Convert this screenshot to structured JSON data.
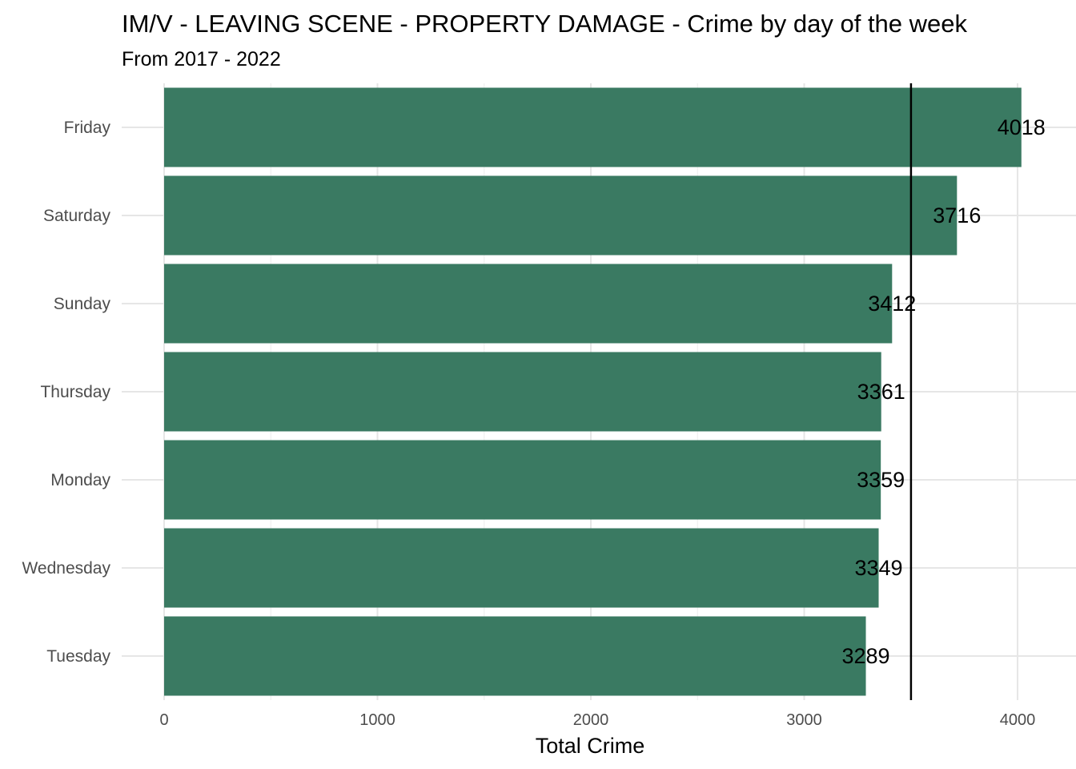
{
  "chart_data": {
    "type": "bar",
    "orientation": "horizontal",
    "title": "IM/V - LEAVING SCENE - PROPERTY DAMAGE - Crime by day of the week",
    "subtitle": "From 2017 - 2022",
    "xlabel": "Total Crime",
    "ylabel": "",
    "categories": [
      "Friday",
      "Saturday",
      "Sunday",
      "Thursday",
      "Monday",
      "Wednesday",
      "Tuesday"
    ],
    "values": [
      4018,
      3716,
      3412,
      3361,
      3359,
      3349,
      3289
    ],
    "data_labels": [
      "4018",
      "3716",
      "3412",
      "3361",
      "3359",
      "3349",
      "3289"
    ],
    "xlim": [
      0,
      4200
    ],
    "xticks": [
      0,
      1000,
      2000,
      3000,
      4000
    ],
    "xtick_labels": [
      "0",
      "1000",
      "2000",
      "3000",
      "4000"
    ],
    "reference_line": 3500.57,
    "grid": true,
    "bar_color": "#3a7a62",
    "reference_line_color": "#000000",
    "legend": "none"
  }
}
